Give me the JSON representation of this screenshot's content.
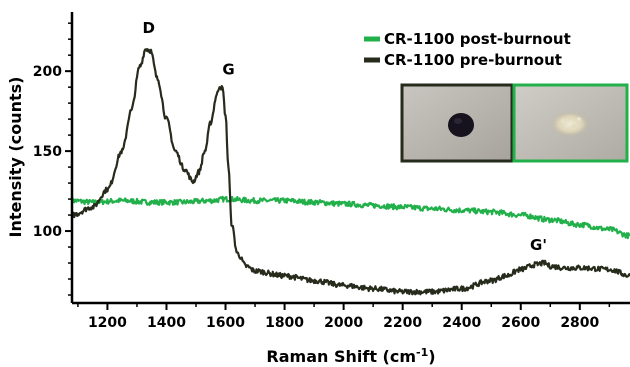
{
  "chart_data": {
    "type": "line",
    "title": "",
    "xlabel": "Raman Shift (cm",
    "xlabel_sup": "-1",
    "xlabel_suffix": ")",
    "ylabel": "Intensity (counts)",
    "xlim": [
      1080,
      2970
    ],
    "ylim": [
      55,
      237
    ],
    "xticks": [
      1200,
      1400,
      1600,
      1800,
      2000,
      2200,
      2400,
      2600,
      2800
    ],
    "xtick_labels": [
      "1200",
      "1400",
      "1600",
      "1800",
      "2000",
      "2200",
      "2400",
      "2600",
      "2800"
    ],
    "yticks": [
      100,
      150,
      200
    ],
    "ytick_labels": [
      "100",
      "150",
      "200"
    ],
    "grid": false,
    "legend_position": "top-right",
    "series": [
      {
        "name": "CR-1100 post-burnout",
        "color": "#22b04b",
        "x": [
          1080,
          1150,
          1250,
          1350,
          1450,
          1550,
          1600,
          1700,
          1800,
          1900,
          2000,
          2100,
          2200,
          2300,
          2400,
          2500,
          2600,
          2700,
          2800,
          2900,
          2970
        ],
        "y": [
          119,
          118,
          119,
          118,
          118,
          119,
          120,
          119,
          119,
          118,
          117,
          116,
          115,
          114,
          113,
          112,
          110,
          107,
          104,
          101,
          97
        ]
      },
      {
        "name": "CR-1100 pre-burnout",
        "color": "#262b1c",
        "x": [
          1080,
          1150,
          1200,
          1250,
          1280,
          1310,
          1330,
          1345,
          1370,
          1400,
          1430,
          1460,
          1490,
          1510,
          1530,
          1550,
          1570,
          1580,
          1590,
          1600,
          1610,
          1620,
          1640,
          1670,
          1700,
          1800,
          1900,
          2000,
          2100,
          2200,
          2300,
          2400,
          2500,
          2550,
          2600,
          2650,
          2680,
          2700,
          2750,
          2800,
          2900,
          2970
        ],
        "y": [
          110,
          115,
          126,
          150,
          175,
          203,
          214,
          213,
          195,
          170,
          150,
          139,
          131,
          137,
          150,
          168,
          185,
          191,
          189,
          172,
          140,
          105,
          86,
          78,
          75,
          72,
          69,
          66,
          64,
          62,
          62,
          64,
          69,
          72,
          76,
          79,
          80,
          78,
          77,
          77,
          76,
          72
        ]
      }
    ],
    "annotations": [
      {
        "text": "D",
        "x": 1340,
        "y": 224
      },
      {
        "text": "G",
        "x": 1610,
        "y": 198
      },
      {
        "text": "G'",
        "x": 2660,
        "y": 88
      }
    ],
    "inset_images": [
      {
        "name": "pre-burnout-sample-photo",
        "frame_color": "#262b1c"
      },
      {
        "name": "post-burnout-sample-photo",
        "frame_color": "#22b04b"
      }
    ]
  }
}
